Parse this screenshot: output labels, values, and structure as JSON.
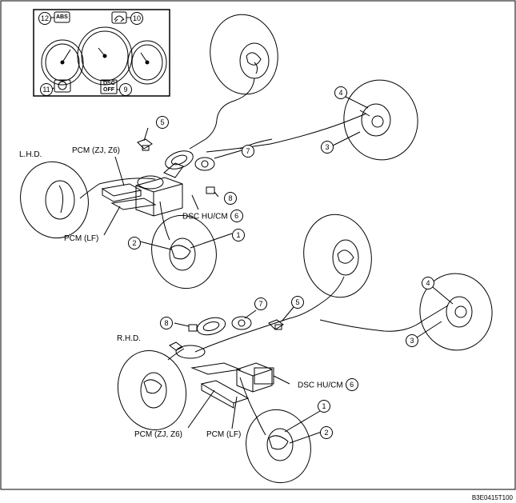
{
  "lhd": {
    "section": "L.H.D.",
    "pcm_zj": "PCM (ZJ, Z6)",
    "pcm_lf": "PCM (LF)",
    "dsc": "DSC HU/CM"
  },
  "rhd": {
    "section": "R.H.D.",
    "pcm_zj": "PCM (ZJ, Z6)",
    "pcm_lf": "PCM (LF)",
    "dsc": "DSC HU/CM"
  },
  "cluster": {
    "abs_text": "ABS",
    "dsc_text": "DSC",
    "off_text": "OFF"
  },
  "callouts": {
    "n1": "1",
    "n2": "2",
    "n3": "3",
    "n4": "4",
    "n5": "5",
    "n6": "6",
    "n7": "7",
    "n8": "8",
    "n9": "9",
    "n10": "10",
    "n11": "11",
    "n12": "12"
  },
  "figure_code": "B3E0415T100"
}
